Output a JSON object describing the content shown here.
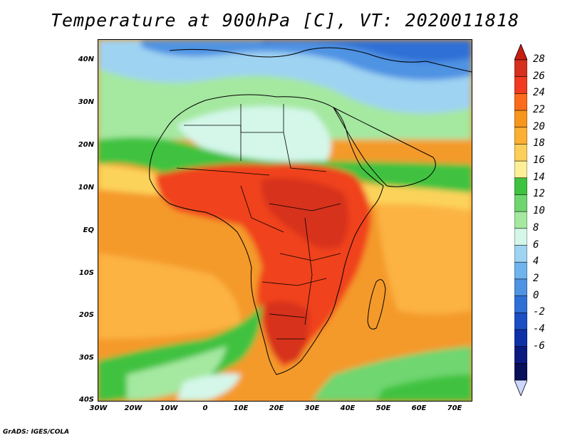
{
  "title": "Temperature at 900hPa [C], VT: 2020011818",
  "footer": "GrADS: IGES/COLA",
  "map": {
    "lat_labels": [
      "40N",
      "30N",
      "20N",
      "10N",
      "EQ",
      "10S",
      "20S",
      "30S",
      "40S"
    ],
    "lon_labels": [
      "30W",
      "20W",
      "10W",
      "0",
      "10E",
      "20E",
      "30E",
      "40E",
      "50E",
      "60E",
      "70E"
    ]
  },
  "colorbar": {
    "labels": [
      "28",
      "26",
      "24",
      "22",
      "20",
      "18",
      "16",
      "14",
      "12",
      "10",
      "8",
      "6",
      "4",
      "2",
      "0",
      "-2",
      "-4",
      "-6"
    ],
    "colors": [
      "#d7301f",
      "#f03b20",
      "#fc6a1c",
      "#f7961d",
      "#fcaf32",
      "#fccf5a",
      "#fdee98",
      "#3fc23f",
      "#6fd66f",
      "#a5e8a0",
      "#d4f7ea",
      "#9fd3f2",
      "#6fb4ec",
      "#4f93e3",
      "#2f70d6",
      "#1c4fc4",
      "#0f31a8",
      "#0a1a80",
      "#08105a"
    ],
    "top_arrow_color": "#c81e0f",
    "bottom_arrow_color": "#ccd8ff"
  }
}
